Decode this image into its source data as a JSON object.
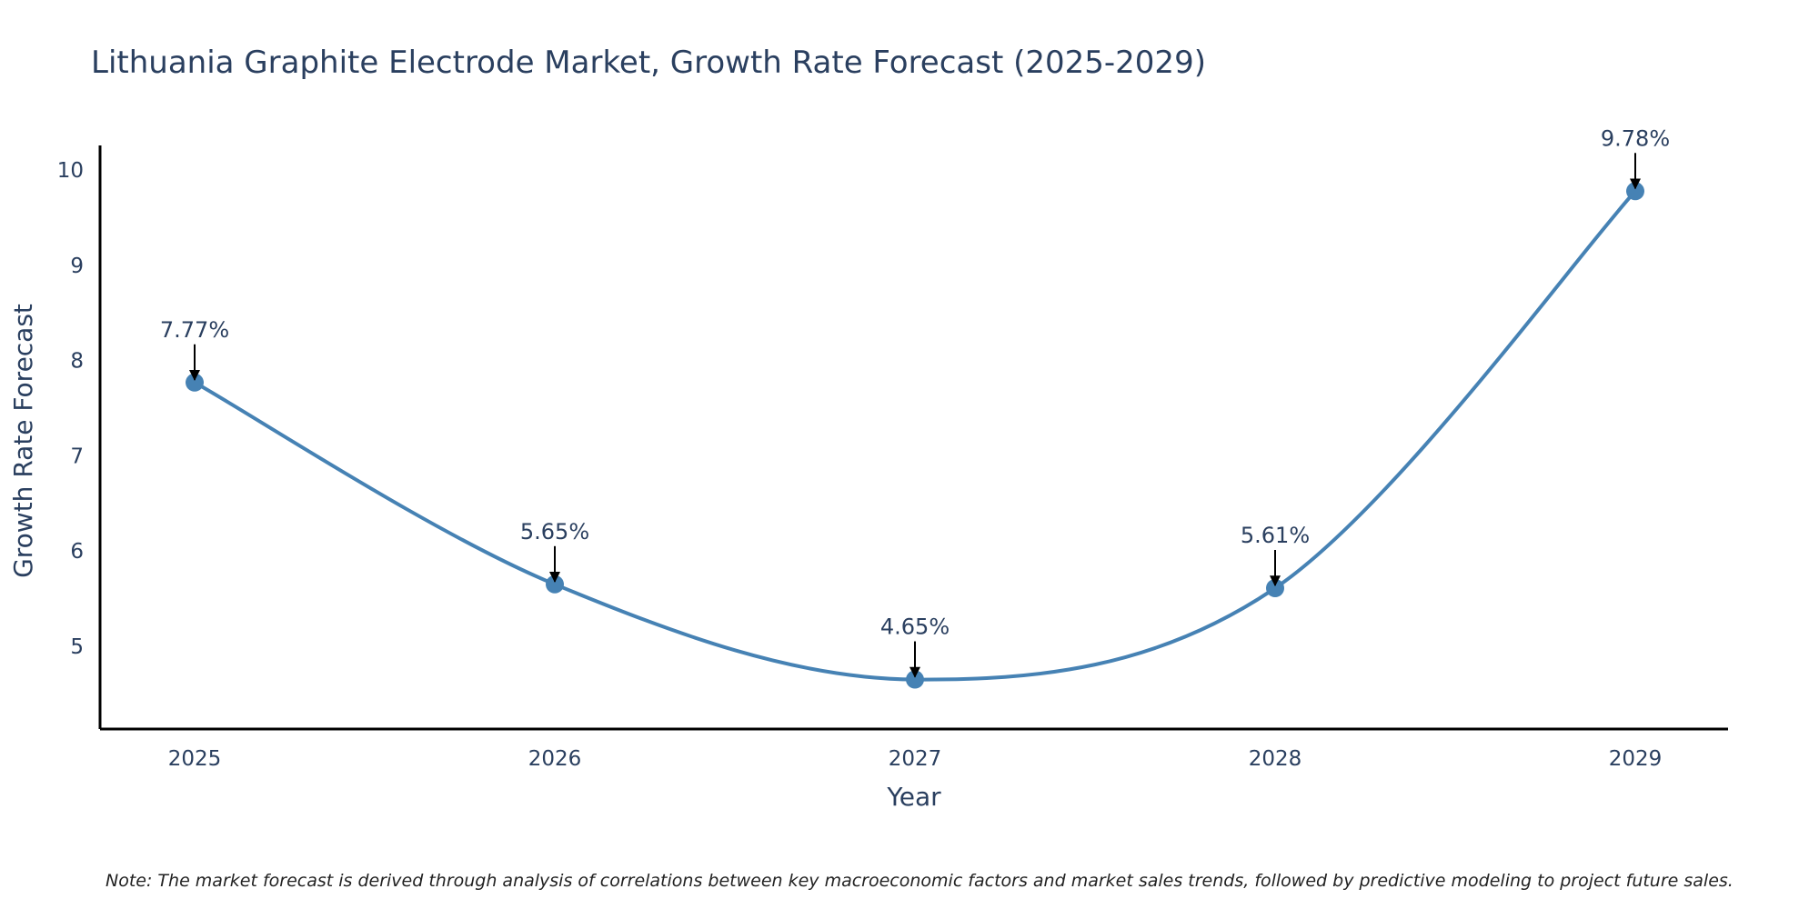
{
  "colors": {
    "line": "#4682b4",
    "axis": "#000000",
    "text": "#2a3f5f",
    "arrow": "#000000"
  },
  "chart_data": {
    "type": "line",
    "title": "Lithuania Graphite Electrode Market, Growth Rate Forecast (2025-2029)",
    "xlabel": "Year",
    "ylabel": "Growth Rate Forecast",
    "categories": [
      "2025",
      "2026",
      "2027",
      "2028",
      "2029"
    ],
    "series": [
      {
        "name": "Growth Rate Forecast",
        "values": [
          7.77,
          5.65,
          4.65,
          5.61,
          9.78
        ]
      }
    ],
    "data_labels": [
      "7.77%",
      "5.65%",
      "4.65%",
      "5.61%",
      "9.78%"
    ],
    "y_ticks": [
      5,
      6,
      7,
      8,
      9,
      10
    ],
    "ylim": [
      4.13,
      10.26
    ],
    "grid": false,
    "smoothing": "spline",
    "note": "Note: The market forecast is derived through analysis of correlations between key macroeconomic factors and market sales trends, followed by predictive modeling to project future sales."
  }
}
